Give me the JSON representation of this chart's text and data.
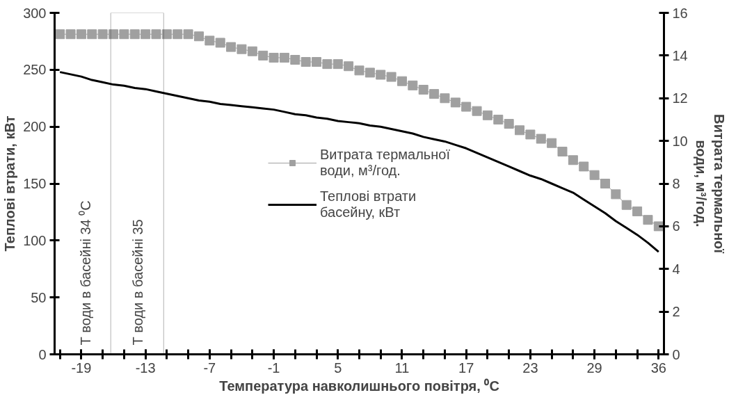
{
  "chart_data": {
    "type": "line",
    "xlabel": "Температура навколишнього повітря, ⁰C",
    "ylabel": "Теплові втрати, кВт",
    "y2label": "Витрата термальної води, м³/год.",
    "categories": [
      null,
      null,
      "-19",
      null,
      null,
      null,
      null,
      null,
      "-13",
      null,
      null,
      null,
      null,
      null,
      "-7",
      null,
      null,
      null,
      null,
      null,
      "-1",
      null,
      null,
      null,
      null,
      null,
      "5",
      null,
      null,
      null,
      null,
      null,
      "11",
      null,
      null,
      null,
      null,
      null,
      "17",
      null,
      null,
      null,
      null,
      null,
      "23",
      null,
      null,
      null,
      null,
      null,
      "29",
      null,
      null,
      null,
      null,
      null,
      "36"
    ],
    "series": [
      {
        "name": "Витрата термальної води, м³/год.",
        "color": "#a0a0a0",
        "marker": "square",
        "axis": "y2",
        "values": [
          15.0,
          15.0,
          15.0,
          15.0,
          15.0,
          15.0,
          15.0,
          15.0,
          15.0,
          15.0,
          15.0,
          15.0,
          15.0,
          14.9,
          14.7,
          14.6,
          14.4,
          14.3,
          14.2,
          14.0,
          13.9,
          13.9,
          13.8,
          13.7,
          13.7,
          13.6,
          13.6,
          13.5,
          13.3,
          13.2,
          13.1,
          13.0,
          12.8,
          12.6,
          12.4,
          12.2,
          12.0,
          11.8,
          11.6,
          11.4,
          11.2,
          11.0,
          10.8,
          10.5,
          10.3,
          10.1,
          9.9,
          9.5,
          9.1,
          8.8,
          8.4,
          8.0,
          7.5,
          7.0,
          6.7,
          6.3,
          6.0
        ]
      },
      {
        "name": "Теплові втрати басейну, кВт",
        "color": "#000000",
        "marker": "none",
        "values": [
          248,
          246,
          244,
          241,
          239,
          237,
          236,
          234,
          233,
          231,
          229,
          227,
          225,
          223,
          222,
          220,
          219,
          218,
          217,
          216,
          215,
          213,
          211,
          210,
          208,
          207,
          205,
          204,
          203,
          201,
          200,
          198,
          196,
          194,
          191,
          189,
          187,
          184,
          181,
          177,
          173,
          169,
          165,
          161,
          157,
          154,
          150,
          146,
          142,
          136,
          130,
          124,
          117,
          111,
          105,
          98,
          90
        ]
      }
    ],
    "ylim": [
      0,
      300
    ],
    "yticks": [
      0,
      50,
      100,
      150,
      200,
      250,
      300
    ],
    "y2lim": [
      0,
      16
    ],
    "y2ticks": [
      0,
      2,
      4,
      6,
      8,
      10,
      12,
      14,
      16
    ],
    "grid": false,
    "legend": "center",
    "annotations": [
      "Т води в басейні 34 ⁰C",
      "Т води в басейні 35"
    ]
  }
}
